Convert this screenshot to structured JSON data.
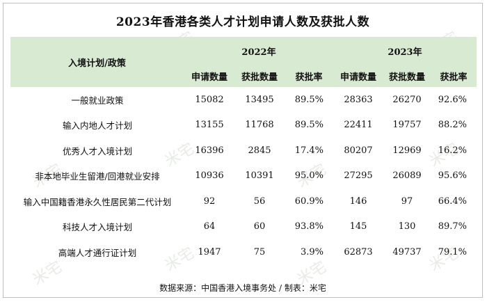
{
  "title": "2023年香港各类人才计划申请人数及获批人数",
  "watermark_text": "米宅",
  "header": {
    "policy": "入境计划/政策",
    "year_2022": "2022年",
    "year_2023": "2023年",
    "col_apply": "申请数量",
    "col_approve": "获批数量",
    "col_rate": "获批率"
  },
  "rows": [
    {
      "name": "一般就业政策",
      "a22": "15082",
      "b22": "13495",
      "r22": "89.5%",
      "a23": "28363",
      "b23": "26270",
      "r23": "92.6%"
    },
    {
      "name": "输入内地人才计划",
      "a22": "13155",
      "b22": "11768",
      "r22": "89.5%",
      "a23": "22411",
      "b23": "19757",
      "r23": "88.2%"
    },
    {
      "name": "优秀人才入境计划",
      "a22": "16396",
      "b22": "2845",
      "r22": "17.4%",
      "a23": "80207",
      "b23": "12969",
      "r23": "16.2%"
    },
    {
      "name": "非本地毕业生留港/回港就业安排",
      "a22": "10936",
      "b22": "10391",
      "r22": "95.0%",
      "a23": "27295",
      "b23": "26089",
      "r23": "95.6%"
    },
    {
      "name": "输入中国籍香港永久性居民第二代计划",
      "a22": "92",
      "b22": "56",
      "r22": "60.9%",
      "a23": "146",
      "b23": "97",
      "r23": "66.4%"
    },
    {
      "name": "科技人才入境计划",
      "a22": "64",
      "b22": "60",
      "r22": "93.8%",
      "a23": "145",
      "b23": "130",
      "r23": "89.7%"
    },
    {
      "name": "高端人才通行证计划",
      "a22": "1947",
      "b22": "75",
      "r22": "3.9%",
      "a23": "62873",
      "b23": "49737",
      "r23": "79.1%"
    }
  ],
  "footer": "数据来源：中国香港入境事务处 / 制表：米宅"
}
